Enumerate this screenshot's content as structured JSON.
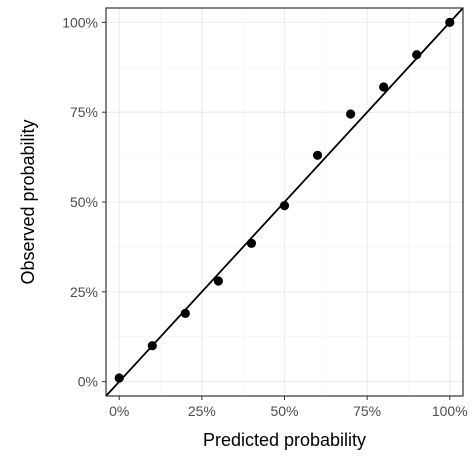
{
  "chart_data": {
    "type": "scatter",
    "title": "",
    "xlabel": "Predicted probability",
    "ylabel": "Observed probability",
    "xlim": [
      -0.04,
      1.04
    ],
    "ylim": [
      -0.04,
      1.04
    ],
    "x_ticks": [
      0,
      0.25,
      0.5,
      0.75,
      1.0
    ],
    "x_tick_labels": [
      "0%",
      "25%",
      "50%",
      "75%",
      "100%"
    ],
    "y_ticks": [
      0,
      0.25,
      0.5,
      0.75,
      1.0
    ],
    "y_tick_labels": [
      "0%",
      "25%",
      "50%",
      "75%",
      "100%"
    ],
    "grid": true,
    "reference_line": {
      "from": [
        0,
        0
      ],
      "to": [
        1,
        1
      ]
    },
    "series": [
      {
        "x": [
          0.0,
          0.1,
          0.2,
          0.3,
          0.4,
          0.5,
          0.6,
          0.7,
          0.8,
          0.9,
          1.0
        ],
        "y": [
          0.01,
          0.1,
          0.19,
          0.28,
          0.385,
          0.49,
          0.63,
          0.745,
          0.82,
          0.91,
          1.0
        ]
      }
    ],
    "colors": {
      "point": "#000000",
      "line": "#000000",
      "grid": "#ebebeb",
      "border": "#333333"
    }
  }
}
